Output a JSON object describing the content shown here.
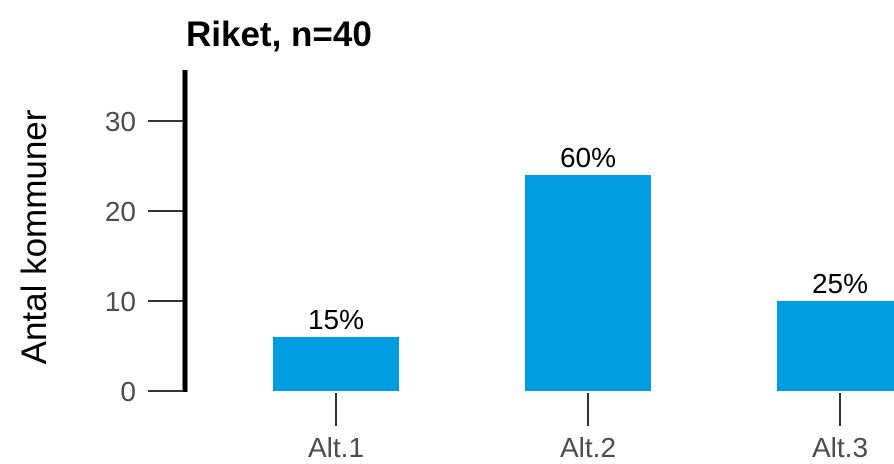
{
  "chart_data": {
    "type": "bar",
    "title": "Riket, n=40",
    "xlabel": "",
    "ylabel": "Antal kommuner",
    "categories": [
      "Alt.1",
      "Alt.2",
      "Alt.3"
    ],
    "values": [
      6,
      24,
      10
    ],
    "data_labels": [
      "15%",
      "60%",
      "25%"
    ],
    "yticks": [
      0,
      10,
      20,
      30
    ],
    "ylim": [
      0,
      36
    ],
    "grid": false,
    "legend": "none",
    "bar_color": "#009ee0"
  }
}
